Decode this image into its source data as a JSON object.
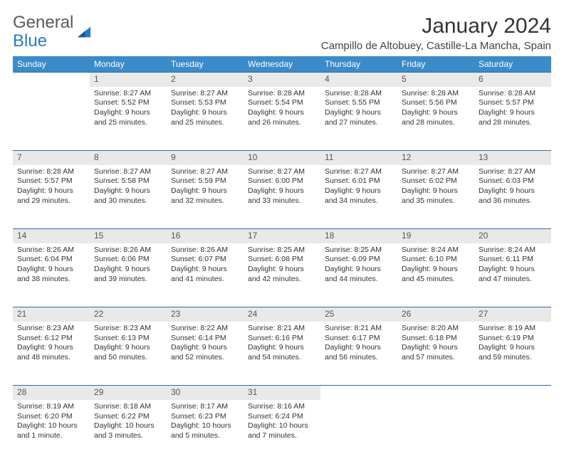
{
  "logo": {
    "general": "General",
    "blue": "Blue"
  },
  "title": "January 2024",
  "location": "Campillo de Altobuey, Castille-La Mancha, Spain",
  "colors": {
    "header_bg": "#3b8bc9",
    "header_text": "#ffffff",
    "daynum_bg": "#e9e9e9",
    "border": "#2a6ca8",
    "logo_gray": "#5a5a5a",
    "logo_blue": "#2a7bbf"
  },
  "weekdays": [
    "Sunday",
    "Monday",
    "Tuesday",
    "Wednesday",
    "Thursday",
    "Friday",
    "Saturday"
  ],
  "weeks": [
    {
      "nums": [
        "",
        "1",
        "2",
        "3",
        "4",
        "5",
        "6"
      ],
      "cells": [
        null,
        {
          "sr": "Sunrise: 8:27 AM",
          "ss": "Sunset: 5:52 PM",
          "d1": "Daylight: 9 hours",
          "d2": "and 25 minutes."
        },
        {
          "sr": "Sunrise: 8:27 AM",
          "ss": "Sunset: 5:53 PM",
          "d1": "Daylight: 9 hours",
          "d2": "and 25 minutes."
        },
        {
          "sr": "Sunrise: 8:28 AM",
          "ss": "Sunset: 5:54 PM",
          "d1": "Daylight: 9 hours",
          "d2": "and 26 minutes."
        },
        {
          "sr": "Sunrise: 8:28 AM",
          "ss": "Sunset: 5:55 PM",
          "d1": "Daylight: 9 hours",
          "d2": "and 27 minutes."
        },
        {
          "sr": "Sunrise: 8:28 AM",
          "ss": "Sunset: 5:56 PM",
          "d1": "Daylight: 9 hours",
          "d2": "and 28 minutes."
        },
        {
          "sr": "Sunrise: 8:28 AM",
          "ss": "Sunset: 5:57 PM",
          "d1": "Daylight: 9 hours",
          "d2": "and 28 minutes."
        }
      ]
    },
    {
      "nums": [
        "7",
        "8",
        "9",
        "10",
        "11",
        "12",
        "13"
      ],
      "cells": [
        {
          "sr": "Sunrise: 8:28 AM",
          "ss": "Sunset: 5:57 PM",
          "d1": "Daylight: 9 hours",
          "d2": "and 29 minutes."
        },
        {
          "sr": "Sunrise: 8:27 AM",
          "ss": "Sunset: 5:58 PM",
          "d1": "Daylight: 9 hours",
          "d2": "and 30 minutes."
        },
        {
          "sr": "Sunrise: 8:27 AM",
          "ss": "Sunset: 5:59 PM",
          "d1": "Daylight: 9 hours",
          "d2": "and 32 minutes."
        },
        {
          "sr": "Sunrise: 8:27 AM",
          "ss": "Sunset: 6:00 PM",
          "d1": "Daylight: 9 hours",
          "d2": "and 33 minutes."
        },
        {
          "sr": "Sunrise: 8:27 AM",
          "ss": "Sunset: 6:01 PM",
          "d1": "Daylight: 9 hours",
          "d2": "and 34 minutes."
        },
        {
          "sr": "Sunrise: 8:27 AM",
          "ss": "Sunset: 6:02 PM",
          "d1": "Daylight: 9 hours",
          "d2": "and 35 minutes."
        },
        {
          "sr": "Sunrise: 8:27 AM",
          "ss": "Sunset: 6:03 PM",
          "d1": "Daylight: 9 hours",
          "d2": "and 36 minutes."
        }
      ]
    },
    {
      "nums": [
        "14",
        "15",
        "16",
        "17",
        "18",
        "19",
        "20"
      ],
      "cells": [
        {
          "sr": "Sunrise: 8:26 AM",
          "ss": "Sunset: 6:04 PM",
          "d1": "Daylight: 9 hours",
          "d2": "and 38 minutes."
        },
        {
          "sr": "Sunrise: 8:26 AM",
          "ss": "Sunset: 6:06 PM",
          "d1": "Daylight: 9 hours",
          "d2": "and 39 minutes."
        },
        {
          "sr": "Sunrise: 8:26 AM",
          "ss": "Sunset: 6:07 PM",
          "d1": "Daylight: 9 hours",
          "d2": "and 41 minutes."
        },
        {
          "sr": "Sunrise: 8:25 AM",
          "ss": "Sunset: 6:08 PM",
          "d1": "Daylight: 9 hours",
          "d2": "and 42 minutes."
        },
        {
          "sr": "Sunrise: 8:25 AM",
          "ss": "Sunset: 6:09 PM",
          "d1": "Daylight: 9 hours",
          "d2": "and 44 minutes."
        },
        {
          "sr": "Sunrise: 8:24 AM",
          "ss": "Sunset: 6:10 PM",
          "d1": "Daylight: 9 hours",
          "d2": "and 45 minutes."
        },
        {
          "sr": "Sunrise: 8:24 AM",
          "ss": "Sunset: 6:11 PM",
          "d1": "Daylight: 9 hours",
          "d2": "and 47 minutes."
        }
      ]
    },
    {
      "nums": [
        "21",
        "22",
        "23",
        "24",
        "25",
        "26",
        "27"
      ],
      "cells": [
        {
          "sr": "Sunrise: 8:23 AM",
          "ss": "Sunset: 6:12 PM",
          "d1": "Daylight: 9 hours",
          "d2": "and 48 minutes."
        },
        {
          "sr": "Sunrise: 8:23 AM",
          "ss": "Sunset: 6:13 PM",
          "d1": "Daylight: 9 hours",
          "d2": "and 50 minutes."
        },
        {
          "sr": "Sunrise: 8:22 AM",
          "ss": "Sunset: 6:14 PM",
          "d1": "Daylight: 9 hours",
          "d2": "and 52 minutes."
        },
        {
          "sr": "Sunrise: 8:21 AM",
          "ss": "Sunset: 6:16 PM",
          "d1": "Daylight: 9 hours",
          "d2": "and 54 minutes."
        },
        {
          "sr": "Sunrise: 8:21 AM",
          "ss": "Sunset: 6:17 PM",
          "d1": "Daylight: 9 hours",
          "d2": "and 56 minutes."
        },
        {
          "sr": "Sunrise: 8:20 AM",
          "ss": "Sunset: 6:18 PM",
          "d1": "Daylight: 9 hours",
          "d2": "and 57 minutes."
        },
        {
          "sr": "Sunrise: 8:19 AM",
          "ss": "Sunset: 6:19 PM",
          "d1": "Daylight: 9 hours",
          "d2": "and 59 minutes."
        }
      ]
    },
    {
      "nums": [
        "28",
        "29",
        "30",
        "31",
        "",
        "",
        ""
      ],
      "cells": [
        {
          "sr": "Sunrise: 8:19 AM",
          "ss": "Sunset: 6:20 PM",
          "d1": "Daylight: 10 hours",
          "d2": "and 1 minute."
        },
        {
          "sr": "Sunrise: 8:18 AM",
          "ss": "Sunset: 6:22 PM",
          "d1": "Daylight: 10 hours",
          "d2": "and 3 minutes."
        },
        {
          "sr": "Sunrise: 8:17 AM",
          "ss": "Sunset: 6:23 PM",
          "d1": "Daylight: 10 hours",
          "d2": "and 5 minutes."
        },
        {
          "sr": "Sunrise: 8:16 AM",
          "ss": "Sunset: 6:24 PM",
          "d1": "Daylight: 10 hours",
          "d2": "and 7 minutes."
        },
        null,
        null,
        null
      ]
    }
  ]
}
